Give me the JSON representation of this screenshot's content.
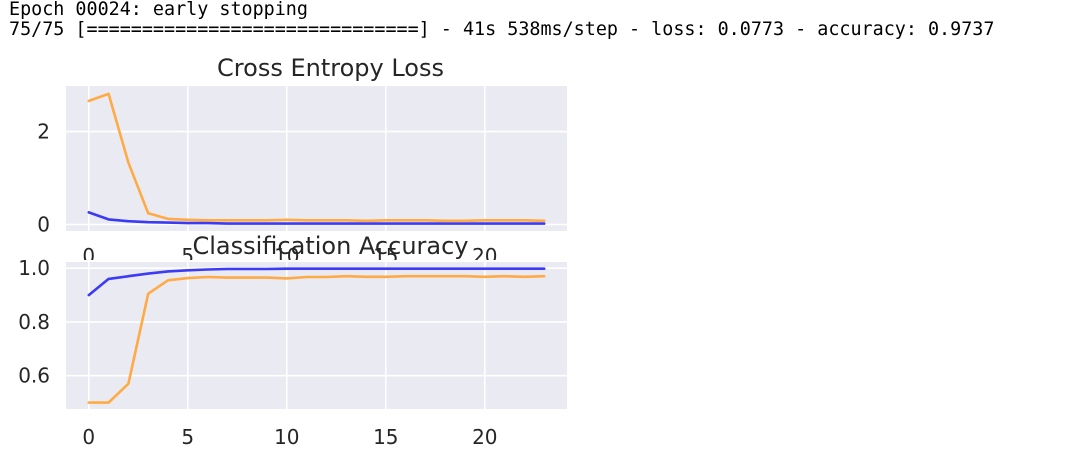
{
  "console": {
    "line1": "Epoch 00024: early stopping",
    "line2": "75/75 [==============================] - 41s 538ms/step - loss: 0.0773 - accuracy: 0.9737"
  },
  "colors": {
    "train": "#3b3bf5",
    "test": "#ffaa44",
    "plot_bg": "#eaeaf2",
    "grid": "#ffffff"
  },
  "chart_data": [
    {
      "type": "line",
      "title": "Cross Entropy Loss",
      "xlabel": "",
      "ylabel": "",
      "xlim": [
        -1.15,
        24.15
      ],
      "ylim": [
        -0.14,
        2.98
      ],
      "xticks": [
        0,
        5,
        10,
        15,
        20
      ],
      "yticks": [
        0,
        2
      ],
      "grid": true,
      "x": [
        0,
        1,
        2,
        3,
        4,
        5,
        6,
        7,
        8,
        9,
        10,
        11,
        12,
        13,
        14,
        15,
        16,
        17,
        18,
        19,
        20,
        21,
        22,
        23
      ],
      "series": [
        {
          "color": "#3b3bf5",
          "values": [
            0.26,
            0.11,
            0.07,
            0.05,
            0.04,
            0.03,
            0.03,
            0.02,
            0.02,
            0.02,
            0.02,
            0.02,
            0.02,
            0.02,
            0.02,
            0.02,
            0.02,
            0.02,
            0.02,
            0.02,
            0.02,
            0.02,
            0.02,
            0.02
          ]
        },
        {
          "color": "#ffaa44",
          "values": [
            2.66,
            2.81,
            1.33,
            0.24,
            0.12,
            0.1,
            0.09,
            0.09,
            0.09,
            0.09,
            0.1,
            0.09,
            0.09,
            0.09,
            0.08,
            0.09,
            0.09,
            0.09,
            0.08,
            0.08,
            0.09,
            0.09,
            0.09,
            0.08
          ]
        }
      ]
    },
    {
      "type": "line",
      "title": "Classification Accuracy",
      "xlabel": "",
      "ylabel": "",
      "xlim": [
        -1.15,
        24.15
      ],
      "ylim": [
        0.476,
        1.023
      ],
      "xticks": [
        0,
        5,
        10,
        15,
        20
      ],
      "yticks": [
        0.6,
        0.8,
        1.0
      ],
      "ytick_labels": [
        "0.6",
        "0.8",
        "1.0"
      ],
      "grid": true,
      "x": [
        0,
        1,
        2,
        3,
        4,
        5,
        6,
        7,
        8,
        9,
        10,
        11,
        12,
        13,
        14,
        15,
        16,
        17,
        18,
        19,
        20,
        21,
        22,
        23
      ],
      "series": [
        {
          "color": "#3b3bf5",
          "values": [
            0.9,
            0.96,
            0.97,
            0.98,
            0.988,
            0.992,
            0.995,
            0.997,
            0.997,
            0.997,
            0.998,
            0.998,
            0.998,
            0.998,
            0.998,
            0.998,
            0.998,
            0.998,
            0.998,
            0.998,
            0.998,
            0.998,
            0.998,
            0.998
          ]
        },
        {
          "color": "#ffaa44",
          "values": [
            0.5,
            0.5,
            0.57,
            0.905,
            0.955,
            0.963,
            0.967,
            0.965,
            0.965,
            0.965,
            0.962,
            0.967,
            0.967,
            0.97,
            0.968,
            0.968,
            0.97,
            0.97,
            0.97,
            0.97,
            0.968,
            0.97,
            0.968,
            0.97
          ]
        }
      ]
    }
  ]
}
